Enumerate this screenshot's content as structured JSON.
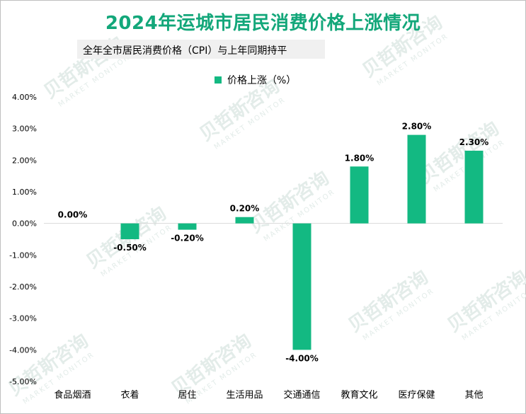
{
  "title": "2024年运城市居民消费价格上涨情况",
  "subtitle": "全年全市居民消费价格（CPI）与上年同期持平",
  "watermark": {
    "cn": "贝哲斯咨询",
    "en": "MARKET MONITOR"
  },
  "colors": {
    "bar": "#13b982",
    "title": "#13a77a",
    "axis": "#d9d9d9"
  },
  "chart_data": {
    "type": "bar",
    "categories": [
      "食品烟酒",
      "衣着",
      "居住",
      "生活用品",
      "交通通信",
      "教育文化",
      "医疗保健",
      "其他"
    ],
    "series": [
      {
        "name": "价格上涨（%）",
        "values": [
          0.0,
          -0.5,
          -0.2,
          0.2,
          -4.0,
          1.8,
          2.8,
          2.3
        ],
        "labels": [
          "0.00%",
          "-0.50%",
          "-0.20%",
          "0.20%",
          "-4.00%",
          "1.80%",
          "2.80%",
          "2.30%"
        ]
      }
    ],
    "ylim": [
      -5,
      4
    ],
    "yticks": [
      4,
      3,
      2,
      1,
      0,
      -1,
      -2,
      -3,
      -4,
      -5
    ],
    "ytick_labels": [
      "4.00%",
      "3.00%",
      "2.00%",
      "1.00%",
      "0.00%",
      "-1.00%",
      "-2.00%",
      "-3.00%",
      "-4.00%",
      "-5.00%"
    ],
    "legend_position": "top-center",
    "grid": false
  }
}
